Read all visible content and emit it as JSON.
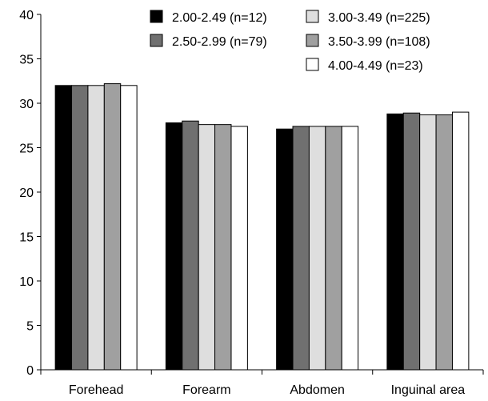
{
  "chart_data": {
    "type": "bar",
    "title": "",
    "xlabel": "",
    "ylabel": "",
    "ylim": [
      0,
      40
    ],
    "yticks": [
      0,
      5,
      10,
      15,
      20,
      25,
      30,
      35,
      40
    ],
    "grid": false,
    "legend_position": "top-right",
    "categories": [
      "Forehead",
      "Forearm",
      "Abdomen",
      "Inguinal area"
    ],
    "series": [
      {
        "name": "2.00-2.49 (n=12)",
        "color": "#000000",
        "values": [
          32.0,
          27.8,
          27.1,
          28.8
        ]
      },
      {
        "name": "2.50-2.99 (n=79)",
        "color": "#707070",
        "values": [
          32.0,
          28.0,
          27.4,
          28.9
        ]
      },
      {
        "name": "3.00-3.49 (n=225)",
        "color": "#dedede",
        "values": [
          32.0,
          27.6,
          27.4,
          28.7
        ]
      },
      {
        "name": "3.50-3.99 (n=108)",
        "color": "#a0a0a0",
        "values": [
          32.2,
          27.6,
          27.4,
          28.7
        ]
      },
      {
        "name": "4.00-4.49 (n=23)",
        "color": "#ffffff",
        "values": [
          32.0,
          27.4,
          27.4,
          29.0
        ]
      }
    ]
  }
}
